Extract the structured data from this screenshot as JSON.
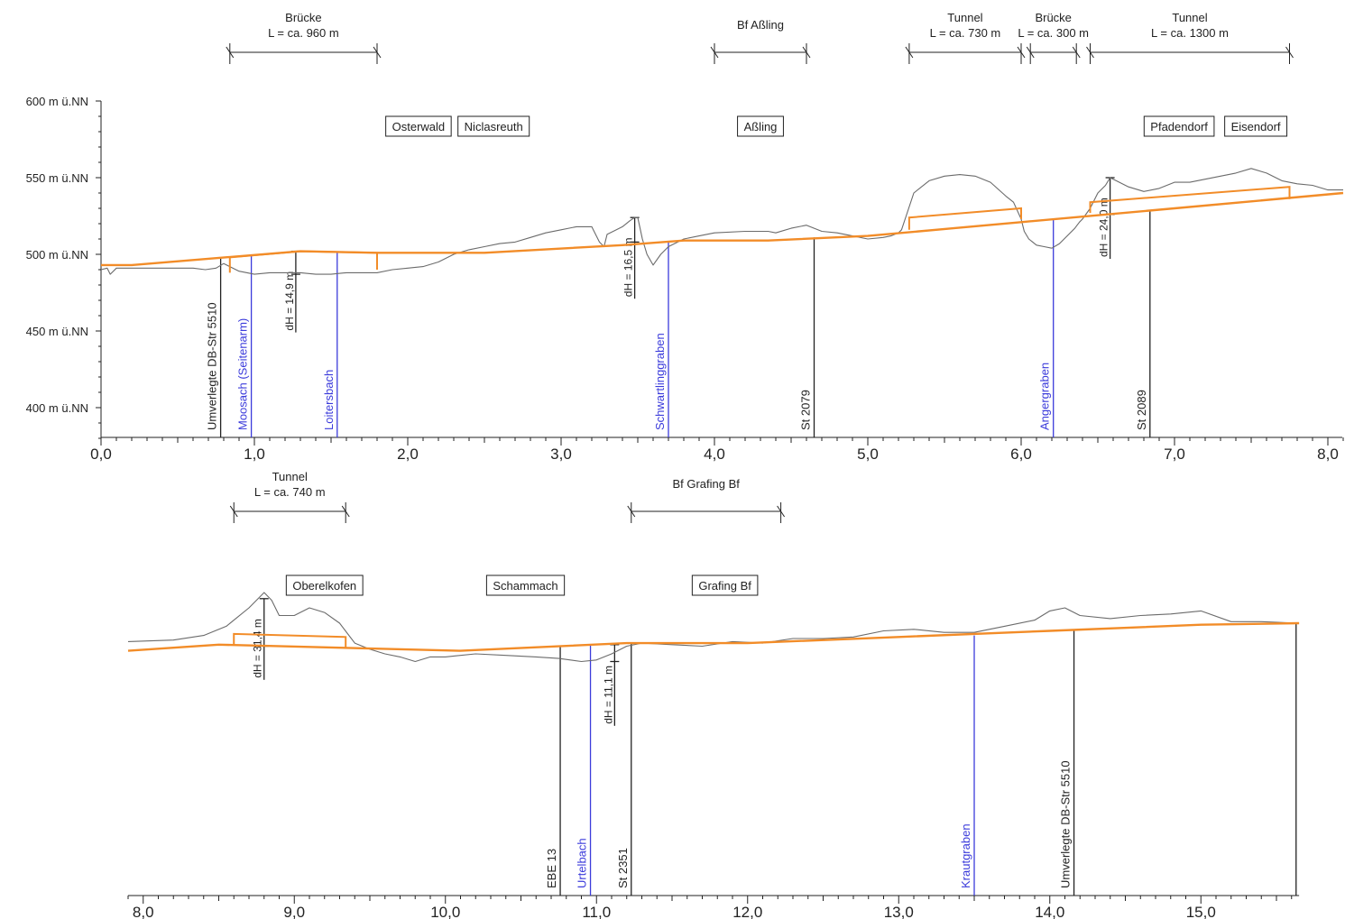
{
  "chart_data": [
    {
      "type": "line",
      "x_range": [
        0.0,
        8.1
      ],
      "y_range": [
        380,
        600
      ],
      "y_unit": "m ü.NN",
      "x_ticks": [
        {
          "x": 0.0,
          "label": "0,0"
        },
        {
          "x": 1.0,
          "label": "1,0"
        },
        {
          "x": 2.0,
          "label": "2,0"
        },
        {
          "x": 3.0,
          "label": "3,0"
        },
        {
          "x": 4.0,
          "label": "4,0"
        },
        {
          "x": 5.0,
          "label": "5,0"
        },
        {
          "x": 6.0,
          "label": "6,0"
        },
        {
          "x": 7.0,
          "label": "7,0"
        },
        {
          "x": 8.0,
          "label": "8,0"
        }
      ],
      "y_ticks": [
        {
          "y": 600,
          "label": "600 m ü.NN"
        },
        {
          "y": 550,
          "label": "550 m ü.NN"
        },
        {
          "y": 500,
          "label": "500 m ü.NN"
        },
        {
          "y": 450,
          "label": "450 m ü.NN"
        },
        {
          "y": 400,
          "label": "400 m ü.NN"
        }
      ],
      "series": [
        {
          "color": "#6b6b6b",
          "x": [
            0.0,
            0.04,
            0.06,
            0.1,
            0.3,
            0.5,
            0.6,
            0.68,
            0.75,
            0.8,
            0.9,
            1.0,
            1.1,
            1.2,
            1.3,
            1.4,
            1.5,
            1.6,
            1.7,
            1.8,
            1.9,
            2.0,
            2.1,
            2.2,
            2.3,
            2.4,
            2.5,
            2.6,
            2.7,
            2.8,
            2.9,
            3.0,
            3.1,
            3.2,
            3.25,
            3.28,
            3.3,
            3.4,
            3.45,
            3.48,
            3.5,
            3.53,
            3.56,
            3.6,
            3.65,
            3.7,
            3.8,
            3.9,
            4.0,
            4.2,
            4.35,
            4.4,
            4.5,
            4.6,
            4.7,
            4.8,
            4.9,
            5.0,
            5.1,
            5.15,
            5.2,
            5.22,
            5.25,
            5.3,
            5.4,
            5.5,
            5.6,
            5.7,
            5.8,
            5.9,
            5.95,
            6.0,
            6.02,
            6.05,
            6.1,
            6.15,
            6.2,
            6.25,
            6.3,
            6.35,
            6.38,
            6.4,
            6.45,
            6.5,
            6.55,
            6.58,
            6.62,
            6.7,
            6.8,
            6.9,
            7.0,
            7.1,
            7.2,
            7.3,
            7.4,
            7.5,
            7.6,
            7.7,
            7.8,
            7.9,
            8.0,
            8.1
          ],
          "y": [
            490,
            491,
            487,
            491,
            491,
            491,
            491,
            490,
            491,
            494,
            489,
            487,
            488,
            488,
            488,
            487,
            487,
            488,
            488,
            488,
            490,
            491,
            492,
            495,
            500,
            503,
            505,
            507,
            508,
            511,
            514,
            516,
            518,
            518,
            508,
            505,
            513,
            518,
            522,
            524,
            524,
            510,
            500,
            493,
            500,
            505,
            510,
            512,
            514,
            515,
            515,
            514,
            517,
            519,
            515,
            514,
            512,
            510,
            511,
            512,
            514,
            516,
            525,
            540,
            548,
            551,
            552,
            551,
            547,
            538,
            534,
            523,
            515,
            510,
            506,
            505,
            504,
            507,
            512,
            517,
            521,
            523,
            530,
            540,
            545,
            550,
            548,
            544,
            541,
            543,
            547,
            547,
            549,
            551,
            553,
            556,
            553,
            548,
            546,
            545,
            542,
            542
          ]
        },
        {
          "color": "#f28c28",
          "x": [
            0.0,
            0.2,
            1.3,
            1.8,
            2.5,
            3.4,
            3.8,
            4.35,
            5.0,
            6.0,
            7.0,
            8.1
          ],
          "y": [
            493,
            493,
            502,
            501,
            501,
            506,
            509,
            509,
            512,
            521,
            530,
            540
          ]
        }
      ],
      "spans": [
        {
          "label": "Brücke",
          "length": "L = ca. 960 m",
          "from": 0.84,
          "to": 1.8
        },
        {
          "label": "Bf Aßling",
          "length": "",
          "from": 4.0,
          "to": 4.6
        },
        {
          "label": "Tunnel",
          "length": "L = ca. 730 m",
          "from": 5.27,
          "to": 6.0
        },
        {
          "label": "Brücke",
          "length": "L = ca. 300 m",
          "from": 6.06,
          "to": 6.36
        },
        {
          "label": "Tunnel",
          "length": "L = ca. 1300 m",
          "from": 6.45,
          "to": 7.75
        }
      ],
      "places": [
        {
          "label": "Osterwald",
          "x": 2.07
        },
        {
          "label": "Niclasreuth",
          "x": 2.56
        },
        {
          "label": "Aßling",
          "x": 4.3
        },
        {
          "label": "Pfadendorf",
          "x": 7.03
        },
        {
          "label": "Eisendorf",
          "x": 7.53
        }
      ],
      "crossings": [
        {
          "label": "Umverlegte DB-Str 5510",
          "x": 0.78,
          "top_y": 498,
          "kind": "road"
        },
        {
          "label": "Moosach (Seitenarm)",
          "x": 0.98,
          "top_y": 499,
          "kind": "water"
        },
        {
          "label": "Loitersbach",
          "x": 1.54,
          "top_y": 502,
          "kind": "water"
        },
        {
          "label": "Schwartlinggraben",
          "x": 3.7,
          "top_y": 508,
          "kind": "water"
        },
        {
          "label": "St 2079",
          "x": 4.65,
          "top_y": 511,
          "kind": "road"
        },
        {
          "label": "Angergraben",
          "x": 6.21,
          "top_y": 523,
          "kind": "water"
        },
        {
          "label": "St 2089",
          "x": 6.84,
          "top_y": 528,
          "kind": "road"
        }
      ],
      "heights": [
        {
          "label": "dH = 14,9 m",
          "x": 1.27,
          "top_y": 502,
          "bottom_y": 487
        },
        {
          "label": "dH = 16,5 m",
          "x": 3.48,
          "top_y": 524,
          "bottom_y": 508
        },
        {
          "label": "dH = 24,0 m",
          "x": 6.58,
          "top_y": 550,
          "bottom_y": 526
        }
      ],
      "structures": [
        {
          "kind": "bridge",
          "from": 0.84,
          "to": 1.8,
          "track": [
            498,
            502,
            501
          ],
          "bottom": 488
        },
        {
          "kind": "tunnel",
          "from": 5.27,
          "to": 6.0,
          "track_from": 516,
          "track_to": 523,
          "top_from": 524,
          "top_to": 530
        },
        {
          "kind": "tunnel",
          "from": 6.45,
          "to": 7.75,
          "track_from": 527,
          "track_to": 536,
          "top_from": 534,
          "top_to": 544
        }
      ]
    },
    {
      "type": "line",
      "x_range": [
        7.9,
        15.65
      ],
      "y_range": [
        380,
        600
      ],
      "x_ticks": [
        {
          "x": 8.0,
          "label": "8,0"
        },
        {
          "x": 9.0,
          "label": "9,0"
        },
        {
          "x": 10.0,
          "label": "10,0"
        },
        {
          "x": 11.0,
          "label": "11,0"
        },
        {
          "x": 12.0,
          "label": "12,0"
        },
        {
          "x": 13.0,
          "label": "13,0"
        },
        {
          "x": 14.0,
          "label": "14,0"
        },
        {
          "x": 15.0,
          "label": "15,0"
        }
      ],
      "series": [
        {
          "color": "#6b6b6b",
          "x": [
            7.9,
            8.2,
            8.4,
            8.55,
            8.7,
            8.8,
            8.85,
            8.9,
            9.0,
            9.1,
            9.2,
            9.3,
            9.4,
            9.5,
            9.6,
            9.7,
            9.8,
            9.9,
            10.0,
            10.2,
            10.4,
            10.6,
            10.75,
            10.9,
            11.0,
            11.1,
            11.2,
            11.3,
            11.5,
            11.7,
            11.9,
            12.1,
            12.3,
            12.5,
            12.7,
            12.9,
            13.1,
            13.3,
            13.5,
            13.7,
            13.9,
            14.0,
            14.1,
            14.2,
            14.4,
            14.6,
            14.8,
            15.0,
            15.2,
            15.4,
            15.65
          ],
          "y": [
            518,
            519,
            522,
            528,
            540,
            550,
            545,
            535,
            535,
            540,
            537,
            530,
            517,
            513,
            510,
            508,
            505,
            508,
            508,
            510,
            509,
            508,
            507,
            505,
            506,
            510,
            515,
            517,
            516,
            515,
            518,
            517,
            520,
            520,
            521,
            525,
            526,
            524,
            524,
            528,
            532,
            538,
            540,
            535,
            533,
            535,
            536,
            538,
            531,
            531,
            530
          ]
        },
        {
          "color": "#f28c28",
          "x": [
            7.9,
            8.5,
            9.3,
            10.1,
            11.2,
            12.0,
            13.0,
            14.0,
            15.0,
            15.65
          ],
          "y": [
            512,
            516,
            514,
            512,
            517,
            517,
            521,
            525,
            529,
            530
          ]
        }
      ],
      "spans": [
        {
          "label": "Tunnel",
          "length": "L = ca. 740 m",
          "from": 8.6,
          "to": 9.34
        },
        {
          "label": "Bf Grafing Bf",
          "length": "",
          "from": 11.23,
          "to": 12.22
        }
      ],
      "places": [
        {
          "label": "Oberelkofen",
          "x": 9.2
        },
        {
          "label": "Schammach",
          "x": 10.53
        },
        {
          "label": "Grafing Bf",
          "x": 11.85
        }
      ],
      "crossings": [
        {
          "label": "EBE 13",
          "x": 10.76,
          "top_y": 515,
          "kind": "road"
        },
        {
          "label": "Urtelbach",
          "x": 10.96,
          "top_y": 516,
          "kind": "water"
        },
        {
          "label": "St 2351",
          "x": 11.23,
          "top_y": 517,
          "kind": "road"
        },
        {
          "label": "Krautgraben",
          "x": 13.5,
          "top_y": 522,
          "kind": "water"
        },
        {
          "label": "Umverlegte DB-Str 5510",
          "x": 14.16,
          "top_y": 525,
          "kind": "road"
        },
        {
          "label": "",
          "x": 15.63,
          "top_y": 530,
          "kind": "road"
        }
      ],
      "heights": [
        {
          "label": "dH = 31,4 m",
          "x": 8.8,
          "top_y": 546,
          "bottom_y": 515
        },
        {
          "label": "dH = 11,1 m",
          "x": 11.12,
          "top_y": 516,
          "bottom_y": 505
        }
      ],
      "structures": [
        {
          "kind": "tunnel",
          "from": 8.6,
          "to": 9.34,
          "track_from": 516,
          "track_to": 514,
          "top_from": 523,
          "top_to": 521
        }
      ]
    }
  ]
}
